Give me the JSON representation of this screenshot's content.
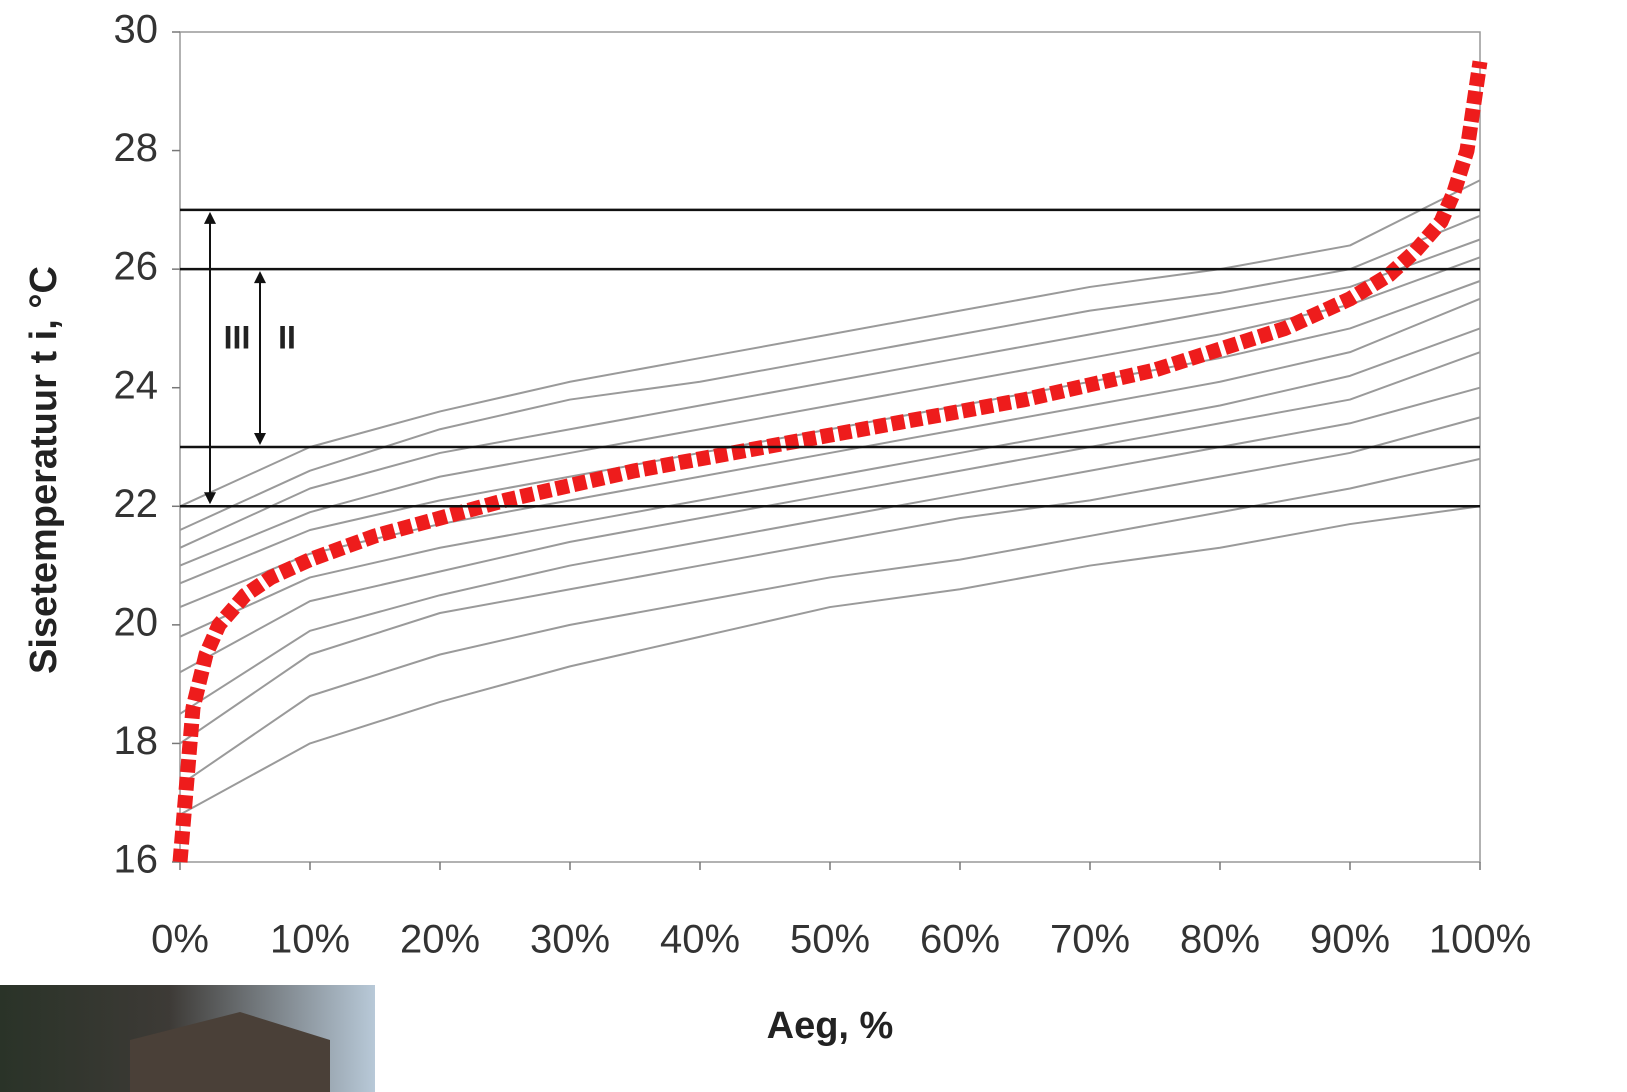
{
  "chart_data": {
    "type": "line",
    "xlabel": "Aeg, %",
    "ylabel": "Sisetemperatuur t i, °C",
    "xlim": [
      0,
      100
    ],
    "ylim": [
      16,
      30
    ],
    "xticks": [
      {
        "value": 0,
        "label": "0%"
      },
      {
        "value": 10,
        "label": "10%"
      },
      {
        "value": 20,
        "label": "20%"
      },
      {
        "value": 30,
        "label": "30%"
      },
      {
        "value": 40,
        "label": "40%"
      },
      {
        "value": 50,
        "label": "50%"
      },
      {
        "value": 60,
        "label": "60%"
      },
      {
        "value": 70,
        "label": "70%"
      },
      {
        "value": 80,
        "label": "80%"
      },
      {
        "value": 90,
        "label": "90%"
      },
      {
        "value": 100,
        "label": "100%"
      }
    ],
    "yticks": [
      16,
      18,
      20,
      22,
      24,
      26,
      28,
      30
    ],
    "hlines": [
      22,
      23,
      26,
      27
    ],
    "annotations": [
      {
        "text": "III",
        "from": 27,
        "to": 22
      },
      {
        "text": "II",
        "from": 26,
        "to": 23
      }
    ],
    "series": [
      {
        "color": "#9a9a9a",
        "x": [
          0,
          10,
          20,
          30,
          40,
          50,
          60,
          70,
          80,
          90,
          100
        ],
        "values": [
          16.8,
          18.0,
          18.7,
          19.3,
          19.8,
          20.3,
          20.6,
          21.0,
          21.3,
          21.7,
          22.0
        ]
      },
      {
        "color": "#9a9a9a",
        "x": [
          0,
          10,
          20,
          30,
          40,
          50,
          60,
          70,
          80,
          90,
          100
        ],
        "values": [
          17.3,
          18.8,
          19.5,
          20.0,
          20.4,
          20.8,
          21.1,
          21.5,
          21.9,
          22.3,
          22.8
        ]
      },
      {
        "color": "#9a9a9a",
        "x": [
          0,
          10,
          20,
          30,
          40,
          50,
          60,
          70,
          80,
          90,
          100
        ],
        "values": [
          18.0,
          19.5,
          20.2,
          20.6,
          21.0,
          21.4,
          21.8,
          22.1,
          22.5,
          22.9,
          23.5
        ]
      },
      {
        "color": "#9a9a9a",
        "x": [
          0,
          10,
          20,
          30,
          40,
          50,
          60,
          70,
          80,
          90,
          100
        ],
        "values": [
          18.5,
          19.9,
          20.5,
          21.0,
          21.4,
          21.8,
          22.2,
          22.6,
          23.0,
          23.4,
          24.0
        ]
      },
      {
        "color": "#9a9a9a",
        "x": [
          0,
          10,
          20,
          30,
          40,
          50,
          60,
          70,
          80,
          90,
          100
        ],
        "values": [
          19.2,
          20.4,
          20.9,
          21.4,
          21.8,
          22.2,
          22.6,
          23.0,
          23.4,
          23.8,
          24.6
        ]
      },
      {
        "color": "#9a9a9a",
        "x": [
          0,
          10,
          20,
          30,
          40,
          50,
          60,
          70,
          80,
          90,
          100
        ],
        "values": [
          19.8,
          20.8,
          21.3,
          21.7,
          22.1,
          22.5,
          22.9,
          23.3,
          23.7,
          24.2,
          25.0
        ]
      },
      {
        "color": "#9a9a9a",
        "x": [
          0,
          10,
          20,
          30,
          40,
          50,
          60,
          70,
          80,
          90,
          100
        ],
        "values": [
          20.3,
          21.2,
          21.7,
          22.1,
          22.5,
          22.9,
          23.3,
          23.7,
          24.1,
          24.6,
          25.5
        ]
      },
      {
        "color": "#9a9a9a",
        "x": [
          0,
          10,
          20,
          30,
          40,
          50,
          60,
          70,
          80,
          90,
          100
        ],
        "values": [
          20.7,
          21.6,
          22.1,
          22.5,
          22.9,
          23.3,
          23.7,
          24.1,
          24.5,
          25.0,
          25.8
        ]
      },
      {
        "color": "#9a9a9a",
        "x": [
          0,
          10,
          20,
          30,
          40,
          50,
          60,
          70,
          80,
          90,
          100
        ],
        "values": [
          21.0,
          21.9,
          22.5,
          22.9,
          23.3,
          23.7,
          24.1,
          24.5,
          24.9,
          25.4,
          26.2
        ]
      },
      {
        "color": "#9a9a9a",
        "x": [
          0,
          10,
          20,
          30,
          40,
          50,
          60,
          70,
          80,
          90,
          100
        ],
        "values": [
          21.3,
          22.3,
          22.9,
          23.3,
          23.7,
          24.1,
          24.5,
          24.9,
          25.3,
          25.7,
          26.5
        ]
      },
      {
        "color": "#9a9a9a",
        "x": [
          0,
          10,
          20,
          30,
          40,
          50,
          60,
          70,
          80,
          90,
          100
        ],
        "values": [
          21.6,
          22.6,
          23.3,
          23.8,
          24.1,
          24.5,
          24.9,
          25.3,
          25.6,
          26.0,
          26.9
        ]
      },
      {
        "color": "#9a9a9a",
        "x": [
          0,
          10,
          20,
          30,
          40,
          50,
          60,
          70,
          80,
          90,
          100
        ],
        "values": [
          22.0,
          23.0,
          23.6,
          24.1,
          24.5,
          24.9,
          25.3,
          25.7,
          26.0,
          26.4,
          27.5
        ]
      },
      {
        "color": "#ee1c1c",
        "x": [
          0,
          1,
          2,
          3,
          5,
          7,
          10,
          15,
          20,
          25,
          30,
          35,
          40,
          45,
          50,
          55,
          60,
          65,
          70,
          75,
          80,
          85,
          90,
          93,
          95,
          97,
          98,
          99,
          100
        ],
        "values": [
          16.0,
          18.6,
          19.5,
          20.0,
          20.5,
          20.8,
          21.1,
          21.5,
          21.8,
          22.1,
          22.35,
          22.6,
          22.8,
          23.0,
          23.2,
          23.4,
          23.6,
          23.8,
          24.05,
          24.3,
          24.65,
          25.0,
          25.5,
          25.9,
          26.3,
          26.8,
          27.3,
          28.0,
          29.5
        ]
      }
    ]
  }
}
